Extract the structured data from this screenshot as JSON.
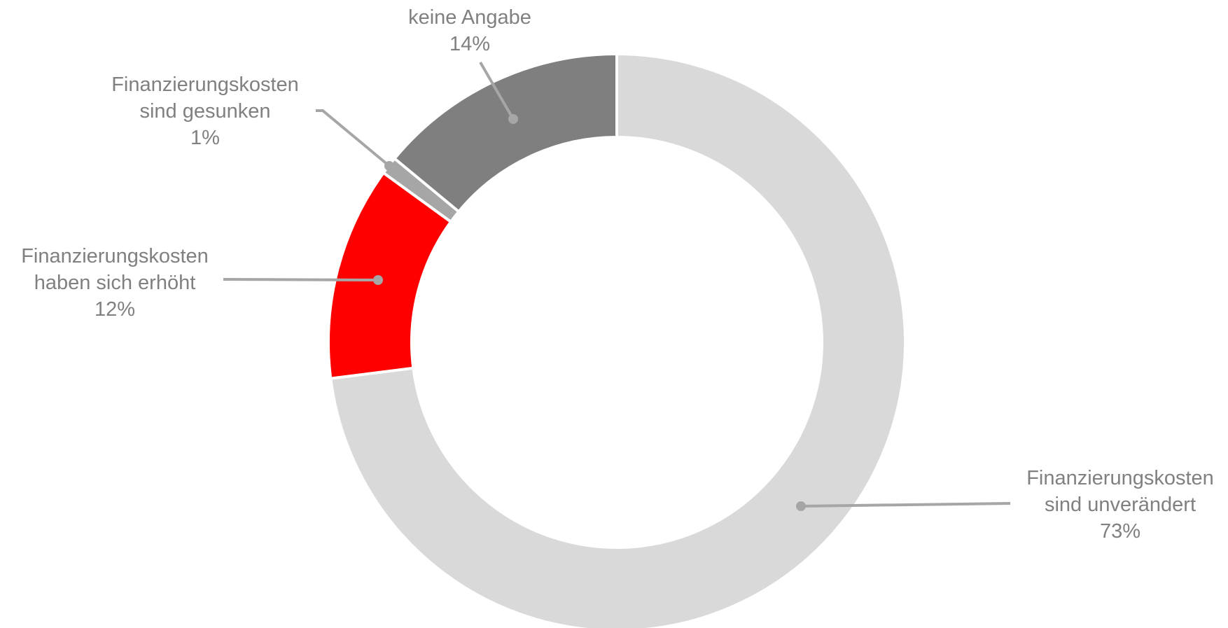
{
  "chart_data": {
    "type": "donut",
    "categories": [
      "Finanzierungskosten\nsind unverändert",
      "Finanzierungskosten\nhaben sich erhöht",
      "Finanzierungskosten\nsind gesunken",
      "keine Angabe"
    ],
    "values": [
      73,
      12,
      1,
      14
    ],
    "value_labels": [
      "73%",
      "12%",
      "1%",
      "14%"
    ],
    "colors": [
      "#d9d9d9",
      "#ff0000",
      "#a6a6a6",
      "#7f7f7f"
    ]
  }
}
